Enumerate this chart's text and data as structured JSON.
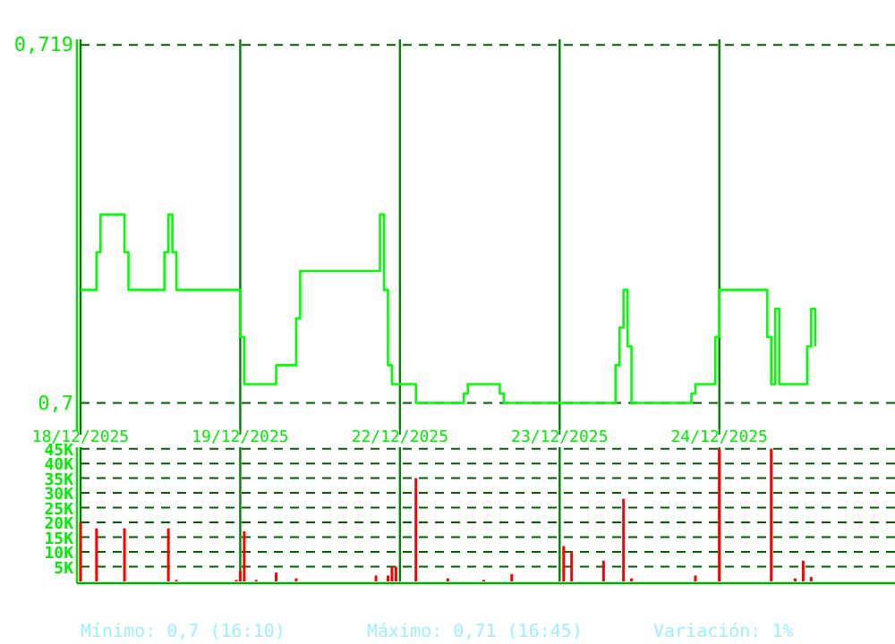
{
  "chart_data": [
    {
      "type": "step",
      "categories": [
        "18/12/2025",
        null,
        null,
        null,
        null,
        null,
        null,
        null,
        null,
        null,
        null,
        null,
        null,
        null,
        null,
        null,
        null,
        null,
        null,
        null,
        null,
        null,
        null,
        null,
        null,
        null,
        null,
        null,
        null,
        null,
        null,
        null,
        null,
        null,
        null,
        null,
        null,
        null,
        null,
        null,
        "19/12/2025",
        null,
        null,
        null,
        null,
        null,
        null,
        null,
        null,
        null,
        null,
        null,
        null,
        null,
        null,
        null,
        null,
        null,
        null,
        null,
        null,
        null,
        null,
        null,
        null,
        null,
        null,
        null,
        null,
        null,
        null,
        null,
        null,
        null,
        null,
        null,
        null,
        null,
        null,
        null,
        "22/12/2025",
        null,
        null,
        null,
        null,
        null,
        null,
        null,
        null,
        null,
        null,
        null,
        null,
        null,
        null,
        null,
        null,
        null,
        null,
        null,
        null,
        null,
        null,
        null,
        null,
        null,
        null,
        null,
        null,
        null,
        null,
        null,
        null,
        null,
        null,
        null,
        null,
        null,
        null,
        null,
        "23/12/2025",
        null,
        null,
        null,
        null,
        null,
        null,
        null,
        null,
        null,
        null,
        null,
        null,
        null,
        null,
        null,
        null,
        null,
        null,
        null,
        null,
        null,
        null,
        null,
        null,
        null,
        null,
        null,
        null,
        null,
        null,
        null,
        null,
        null,
        null,
        null,
        null,
        null,
        null,
        null,
        "24/12/2025",
        null,
        null,
        null,
        null,
        null,
        null,
        null,
        null,
        null,
        null,
        null,
        null,
        null,
        null,
        null,
        null,
        null,
        null,
        null,
        null,
        null,
        null,
        null,
        null,
        null,
        null,
        null,
        null,
        null,
        null,
        null,
        null,
        null,
        null,
        null,
        null,
        null,
        null,
        null,
        null,
        null,
        null,
        null
      ],
      "series": [
        {
          "color": "#00ff00",
          "values": [
            0.706,
            0.706,
            0.706,
            0.706,
            0.708,
            0.71,
            0.71,
            0.71,
            0.71,
            0.71,
            0.71,
            0.708,
            0.706,
            0.706,
            0.706,
            0.706,
            0.706,
            0.706,
            0.706,
            0.706,
            0.706,
            0.708,
            0.71,
            0.708,
            0.706,
            0.706,
            0.706,
            0.706,
            0.706,
            0.706,
            0.706,
            0.706,
            0.706,
            0.706,
            0.706,
            0.706,
            0.706,
            0.706,
            0.706,
            0.706,
            0.7035,
            0.701,
            0.701,
            0.701,
            0.701,
            0.701,
            0.701,
            0.701,
            0.701,
            0.702,
            0.702,
            0.702,
            0.702,
            0.702,
            0.7045,
            0.707,
            0.707,
            0.707,
            0.707,
            0.707,
            0.707,
            0.707,
            0.707,
            0.707,
            0.707,
            0.707,
            0.707,
            0.707,
            0.707,
            0.707,
            0.707,
            0.707,
            0.707,
            0.707,
            0.707,
            0.71,
            0.706,
            0.702,
            0.701,
            0.701,
            0.701,
            0.701,
            0.701,
            0.701,
            0.7,
            0.7,
            0.7,
            0.7,
            0.7,
            0.7,
            0.7,
            0.7,
            0.7,
            0.7,
            0.7,
            0.7,
            0.7005,
            0.701,
            0.701,
            0.701,
            0.701,
            0.701,
            0.701,
            0.701,
            0.701,
            0.7005,
            0.7,
            0.7,
            0.7,
            0.7,
            0.7,
            0.7,
            0.7,
            0.7,
            0.7,
            0.7,
            0.7,
            0.7,
            0.7,
            0.7,
            0.7,
            0.7,
            0.7,
            0.7,
            0.7,
            0.7,
            0.7,
            0.7,
            0.7,
            0.7,
            0.7,
            0.7,
            0.7,
            0.7,
            0.702,
            0.704,
            0.706,
            0.703,
            0.7,
            0.7,
            0.7,
            0.7,
            0.7,
            0.7,
            0.7,
            0.7,
            0.7,
            0.7,
            0.7,
            0.7,
            0.7,
            0.7,
            0.7,
            0.7005,
            0.701,
            0.701,
            0.701,
            0.701,
            0.701,
            0.7035,
            0.706,
            0.706,
            0.706,
            0.706,
            0.706,
            0.706,
            0.706,
            0.706,
            0.706,
            0.706,
            0.706,
            0.706,
            0.7035,
            0.701,
            0.705,
            0.701,
            0.701,
            0.701,
            0.701,
            0.701,
            0.701,
            0.701,
            0.703,
            0.705,
            0.703,
            null,
            null,
            null,
            null,
            null,
            null,
            null,
            null,
            null,
            null,
            null,
            null,
            null,
            null,
            null,
            null,
            null,
            null,
            null
          ]
        }
      ],
      "ylim": [
        0.6986,
        0.7193
      ],
      "yticks": [
        {
          "value": 0.719,
          "label": "0,719"
        },
        {
          "value": 0.7,
          "label": "0,7"
        }
      ],
      "grid": true
    },
    {
      "type": "bar",
      "categories": [
        null,
        null,
        null,
        null,
        null,
        null,
        null,
        null,
        null,
        null,
        null,
        null,
        null,
        null,
        null,
        null,
        null,
        null,
        null,
        null,
        null,
        null,
        null,
        null,
        null,
        null,
        null,
        null,
        null,
        null,
        null,
        null,
        null,
        null,
        null,
        null,
        null,
        null,
        null,
        null,
        null,
        null,
        null,
        null,
        null,
        null,
        null,
        null,
        null,
        null,
        null,
        null,
        null,
        null,
        null,
        null,
        null,
        null,
        null,
        null,
        null,
        null,
        null,
        null,
        null,
        null,
        null,
        null,
        null,
        null,
        null,
        null,
        null,
        null,
        null,
        null,
        null,
        null,
        null,
        null,
        null,
        null,
        null,
        null,
        null,
        null,
        null,
        null,
        null,
        null,
        null,
        null,
        null,
        null,
        null,
        null,
        null,
        null,
        null,
        null,
        null,
        null,
        null,
        null,
        null,
        null,
        null,
        null,
        null,
        null,
        null,
        null,
        null,
        null,
        null,
        null,
        null,
        null,
        null,
        null,
        null,
        null,
        null,
        null,
        null,
        null,
        null,
        null,
        null,
        null,
        null,
        null,
        null,
        null,
        null,
        null,
        null,
        null,
        null,
        null,
        null,
        null,
        null,
        null,
        null,
        null,
        null,
        null,
        null,
        null,
        null,
        null,
        null,
        null,
        null,
        null,
        null,
        null,
        null,
        null,
        null,
        null,
        null,
        null,
        null,
        null,
        null,
        null,
        null,
        null,
        null,
        null,
        null,
        null,
        null,
        null,
        null,
        null,
        null,
        null,
        null,
        null,
        null,
        null,
        null,
        null,
        null,
        null,
        null,
        null,
        null,
        null,
        null,
        null,
        null,
        null,
        null,
        null,
        null,
        null,
        null,
        null,
        null,
        null
      ],
      "series": [
        {
          "color": "#ff0000",
          "values": [
            20000,
            null,
            null,
            null,
            18000,
            null,
            null,
            null,
            null,
            null,
            null,
            18000,
            null,
            null,
            null,
            null,
            null,
            null,
            null,
            null,
            null,
            null,
            18000,
            null,
            500,
            null,
            null,
            null,
            null,
            null,
            null,
            null,
            null,
            null,
            null,
            null,
            null,
            null,
            null,
            500,
            3500,
            17000,
            null,
            null,
            500,
            null,
            null,
            null,
            null,
            3000,
            null,
            null,
            null,
            null,
            1000,
            null,
            null,
            null,
            null,
            null,
            null,
            null,
            null,
            null,
            null,
            null,
            null,
            null,
            null,
            null,
            null,
            null,
            null,
            null,
            2000,
            null,
            null,
            2000,
            5000,
            5000,
            null,
            null,
            null,
            null,
            35000,
            null,
            null,
            null,
            null,
            null,
            null,
            null,
            1000,
            null,
            null,
            null,
            null,
            null,
            null,
            null,
            null,
            500,
            null,
            null,
            null,
            null,
            null,
            null,
            2500,
            null,
            null,
            null,
            null,
            null,
            null,
            null,
            null,
            null,
            null,
            null,
            null,
            12000,
            null,
            10000,
            null,
            null,
            null,
            null,
            null,
            null,
            null,
            7000,
            null,
            null,
            null,
            null,
            28000,
            null,
            1000,
            null,
            null,
            null,
            null,
            null,
            null,
            null,
            null,
            null,
            null,
            null,
            null,
            null,
            null,
            null,
            2000,
            null,
            null,
            null,
            null,
            null,
            45000,
            null,
            null,
            null,
            null,
            null,
            null,
            null,
            null,
            null,
            null,
            null,
            null,
            45000,
            null,
            null,
            null,
            null,
            null,
            1000,
            null,
            7000,
            null,
            1500,
            null,
            null,
            null,
            null,
            null,
            null,
            null,
            null,
            null,
            null,
            null,
            null,
            null,
            null,
            null,
            null,
            null,
            null,
            null,
            null
          ]
        }
      ],
      "ylim": [
        0,
        45500
      ],
      "yticks": [
        {
          "value": 5000,
          "label": "5K"
        },
        {
          "value": 10000,
          "label": "10K"
        },
        {
          "value": 15000,
          "label": "15K"
        },
        {
          "value": 20000,
          "label": "20K"
        },
        {
          "value": 25000,
          "label": "25K"
        },
        {
          "value": 30000,
          "label": "30K"
        },
        {
          "value": 35000,
          "label": "35K"
        },
        {
          "value": 40000,
          "label": "40K"
        },
        {
          "value": 45000,
          "label": "45K"
        }
      ],
      "grid": true,
      "tick_labels": "y",
      "annotations": [
        "Mínimo: 0,7 (16:10)",
        "Máximo: 0,71 (16:45)",
        "Variación: 1%"
      ]
    }
  ]
}
